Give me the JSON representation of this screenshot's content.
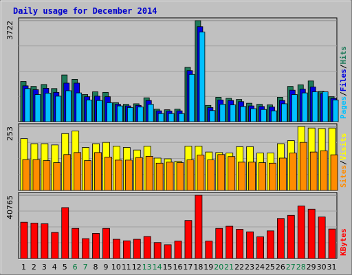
{
  "title": "Daily usage for December 2014",
  "colors": {
    "background": "#c0c0c0",
    "plot_bg": "#c0c0c0",
    "hits": "#1e7a5a",
    "files": "#0000e0",
    "pages": "#00c0ff",
    "visits": "#ffff00",
    "sites": "#ff8c00",
    "kbytes": "#ff0000",
    "title": "#0000cc",
    "weekend_label": "#007a3d"
  },
  "chart_data": {
    "type": "bar",
    "categories": [
      "1",
      "2",
      "3",
      "4",
      "5",
      "6",
      "7",
      "8",
      "9",
      "10",
      "11",
      "12",
      "13",
      "14",
      "15",
      "16",
      "17",
      "18",
      "19",
      "20",
      "21",
      "22",
      "23",
      "24",
      "25",
      "26",
      "27",
      "28",
      "29",
      "30",
      "31"
    ],
    "weekend_days": [
      "6",
      "7",
      "13",
      "14",
      "20",
      "21",
      "27",
      "28"
    ],
    "panels": [
      {
        "id": "hits",
        "ymax_label": "3722",
        "ylim": [
          0,
          3722
        ],
        "side_labels": [
          "Pages",
          "/",
          "Files",
          "/",
          "Hits"
        ],
        "series": [
          {
            "name": "Hits",
            "values": [
              1480,
              1300,
              1370,
              1220,
              1720,
              1560,
              1000,
              1100,
              1080,
              700,
              640,
              660,
              880,
              460,
              440,
              460,
              2000,
              3722,
              600,
              900,
              860,
              820,
              680,
              640,
              620,
              900,
              1300,
              1360,
              1500,
              1120,
              920
            ]
          },
          {
            "name": "Files",
            "values": [
              1320,
              1180,
              1230,
              1080,
              1420,
              1420,
              920,
              940,
              920,
              640,
              580,
              600,
              780,
              400,
              390,
              400,
              1880,
              3500,
              520,
              800,
              780,
              740,
              580,
              560,
              540,
              780,
              1160,
              1200,
              1280,
              1040,
              860
            ]
          },
          {
            "name": "Pages",
            "values": [
              1220,
              1000,
              1050,
              940,
              1140,
              1060,
              800,
              780,
              700,
              580,
              520,
              540,
              640,
              300,
              300,
              300,
              1740,
              3300,
              410,
              640,
              620,
              560,
              480,
              450,
              400,
              660,
              1000,
              1060,
              1100,
              1100,
              800
            ]
          }
        ]
      },
      {
        "id": "visits",
        "ymax_label": "253",
        "ylim": [
          0,
          253
        ],
        "side_labels": [
          "Sites",
          "/",
          "Visits"
        ],
        "series": [
          {
            "name": "Visits",
            "values": [
              205,
              185,
              185,
              180,
              225,
              235,
              170,
              185,
              190,
              175,
              170,
              160,
              175,
              128,
              125,
              115,
              175,
              175,
              152,
              150,
              148,
              173,
              173,
              148,
              148,
              185,
              197,
              253,
              247,
              245,
              247
            ]
          },
          {
            "name": "Sites",
            "values": [
              122,
              122,
              118,
              110,
              142,
              150,
              118,
              150,
              132,
              120,
              120,
              130,
              135,
              108,
              112,
              110,
              121,
              140,
              121,
              142,
              134,
              112,
              112,
              110,
              108,
              128,
              148,
              190,
              152,
              157,
              141
            ]
          }
        ]
      },
      {
        "id": "kbytes",
        "ymax_label": "40765",
        "ylim": [
          0,
          40765
        ],
        "side_labels": [
          "KBytes"
        ],
        "series": [
          {
            "name": "KBytes",
            "values": [
              23400,
              22800,
              22400,
              16800,
              32800,
              19400,
              12800,
              16200,
              19400,
              12400,
              11400,
              12400,
              14200,
              10300,
              8900,
              11200,
              24500,
              40765,
              11200,
              19400,
              20800,
              18800,
              17200,
              14000,
              17800,
              25800,
              27800,
              33800,
              31800,
              26800,
              19000
            ]
          }
        ]
      }
    ]
  }
}
